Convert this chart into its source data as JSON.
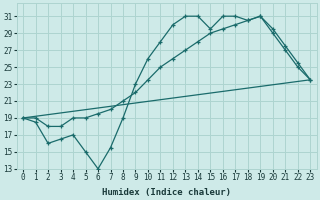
{
  "xlabel": "Humidex (Indice chaleur)",
  "bg_color": "#ceeae8",
  "line_color": "#1a6b6b",
  "grid_color": "#add4d0",
  "xlim": [
    -0.5,
    23.5
  ],
  "ylim": [
    13,
    32.5
  ],
  "yticks": [
    13,
    15,
    17,
    19,
    21,
    23,
    25,
    27,
    29,
    31
  ],
  "xticks": [
    0,
    1,
    2,
    3,
    4,
    5,
    6,
    7,
    8,
    9,
    10,
    11,
    12,
    13,
    14,
    15,
    16,
    17,
    18,
    19,
    20,
    21,
    22,
    23
  ],
  "line1_x": [
    0,
    1,
    2,
    3,
    4,
    5,
    6,
    7,
    8,
    9,
    10,
    11,
    12,
    13,
    14,
    15,
    16,
    17,
    18,
    19,
    20,
    21,
    22,
    23
  ],
  "line1_y": [
    19,
    18.5,
    16,
    16.5,
    17,
    15,
    13,
    15.5,
    19,
    23,
    26,
    28,
    30,
    31,
    31,
    29.5,
    31,
    31,
    30.5,
    31,
    29,
    27,
    25,
    23.5
  ],
  "line2_x": [
    0,
    23
  ],
  "line2_y": [
    19,
    23.5
  ],
  "line3_x": [
    0,
    1,
    2,
    3,
    4,
    5,
    6,
    7,
    8,
    9,
    10,
    11,
    12,
    13,
    14,
    15,
    16,
    17,
    18,
    19,
    20,
    21,
    22,
    23
  ],
  "line3_y": [
    19,
    19,
    18,
    18,
    19,
    19,
    19.5,
    20,
    21,
    22,
    23.5,
    25,
    26,
    27,
    28,
    29,
    29.5,
    30,
    30.5,
    31,
    29.5,
    27.5,
    25.5,
    23.5
  ]
}
